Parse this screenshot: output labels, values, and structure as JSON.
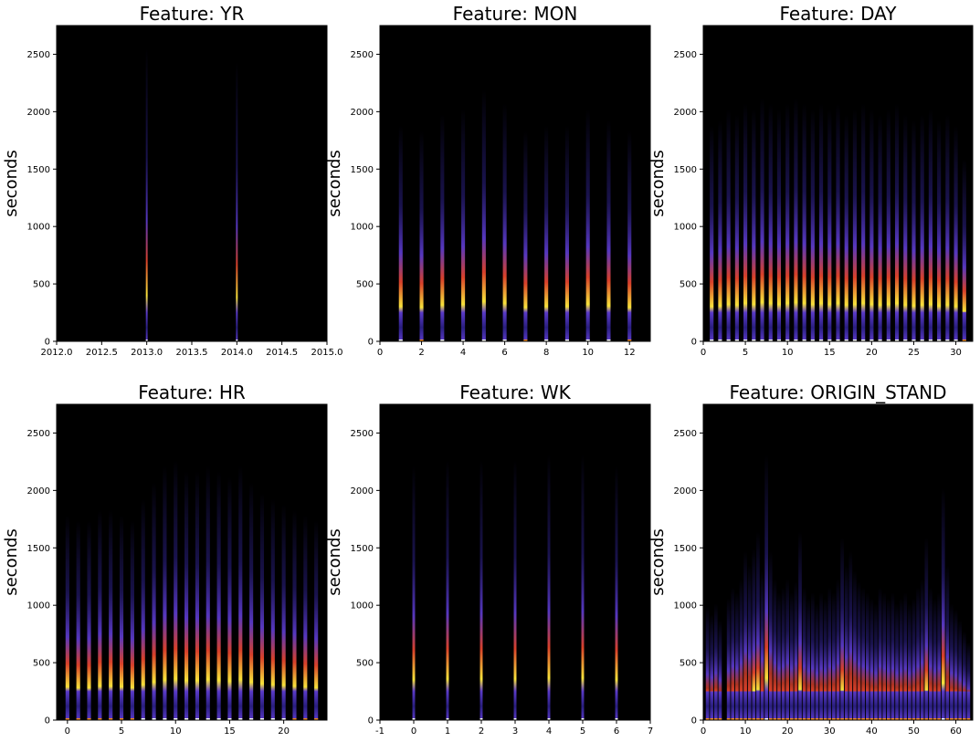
{
  "chart_data": [
    {
      "type": "heatmap",
      "title": "Feature: YR",
      "xlabel": "",
      "ylabel": "seconds",
      "xlim": [
        2012.0,
        2015.0
      ],
      "ylim": [
        0,
        2750
      ],
      "xticks": [
        "2012.0",
        "2012.5",
        "2013.0",
        "2013.5",
        "2014.0",
        "2014.5",
        "2015.0"
      ],
      "xtick_values": [
        2012.0,
        2012.5,
        2013.0,
        2013.5,
        2014.0,
        2014.5,
        2015.0
      ],
      "yticks": [
        "0",
        "500",
        "1000",
        "1500",
        "2000",
        "2500"
      ],
      "ytick_values": [
        0,
        500,
        1000,
        1500,
        2000,
        2500
      ],
      "column_width": 0.02,
      "columns": [
        {
          "x": 2013.0,
          "intensity": 1.0
        },
        {
          "x": 2014.0,
          "intensity": 0.95
        }
      ],
      "colormap": [
        "#000000",
        "#2a1f80",
        "#5a3ac8",
        "#d8402a",
        "#f08a1e",
        "#f7e23a",
        "#ffffff"
      ]
    },
    {
      "type": "heatmap",
      "title": "Feature: MON",
      "xlabel": "",
      "ylabel": "seconds",
      "xlim": [
        0,
        13
      ],
      "ylim": [
        0,
        2750
      ],
      "xticks": [
        "0",
        "2",
        "4",
        "6",
        "8",
        "10",
        "12"
      ],
      "xtick_values": [
        0,
        2,
        4,
        6,
        8,
        10,
        12
      ],
      "yticks": [
        "0",
        "500",
        "1000",
        "1500",
        "2000",
        "2500"
      ],
      "ytick_values": [
        0,
        500,
        1000,
        1500,
        2000,
        2500
      ],
      "column_width": 0.18,
      "columns": [
        {
          "x": 1,
          "intensity": 0.72
        },
        {
          "x": 2,
          "intensity": 0.7
        },
        {
          "x": 3,
          "intensity": 0.76
        },
        {
          "x": 4,
          "intensity": 0.78
        },
        {
          "x": 5,
          "intensity": 0.85
        },
        {
          "x": 6,
          "intensity": 0.8
        },
        {
          "x": 7,
          "intensity": 0.7
        },
        {
          "x": 8,
          "intensity": 0.72
        },
        {
          "x": 9,
          "intensity": 0.72
        },
        {
          "x": 10,
          "intensity": 0.78
        },
        {
          "x": 11,
          "intensity": 0.74
        },
        {
          "x": 12,
          "intensity": 0.7
        }
      ],
      "colormap": [
        "#000000",
        "#2a1f80",
        "#5a3ac8",
        "#d8402a",
        "#f08a1e",
        "#f7e23a",
        "#ffffff"
      ]
    },
    {
      "type": "heatmap",
      "title": "Feature: DAY",
      "xlabel": "",
      "ylabel": "seconds",
      "xlim": [
        0,
        32
      ],
      "ylim": [
        0,
        2750
      ],
      "xticks": [
        "0",
        "5",
        "10",
        "15",
        "20",
        "25",
        "30"
      ],
      "xtick_values": [
        0,
        5,
        10,
        15,
        20,
        25,
        30
      ],
      "yticks": [
        "0",
        "500",
        "1000",
        "1500",
        "2000",
        "2500"
      ],
      "ytick_values": [
        0,
        500,
        1000,
        1500,
        2000,
        2500
      ],
      "column_width": 0.45,
      "columns": [
        {
          "x": 1,
          "intensity": 0.72
        },
        {
          "x": 2,
          "intensity": 0.74
        },
        {
          "x": 3,
          "intensity": 0.78
        },
        {
          "x": 4,
          "intensity": 0.76
        },
        {
          "x": 5,
          "intensity": 0.8
        },
        {
          "x": 6,
          "intensity": 0.78
        },
        {
          "x": 7,
          "intensity": 0.82
        },
        {
          "x": 8,
          "intensity": 0.8
        },
        {
          "x": 9,
          "intensity": 0.78
        },
        {
          "x": 10,
          "intensity": 0.8
        },
        {
          "x": 11,
          "intensity": 0.82
        },
        {
          "x": 12,
          "intensity": 0.8
        },
        {
          "x": 13,
          "intensity": 0.78
        },
        {
          "x": 14,
          "intensity": 0.8
        },
        {
          "x": 15,
          "intensity": 0.78
        },
        {
          "x": 16,
          "intensity": 0.8
        },
        {
          "x": 17,
          "intensity": 0.76
        },
        {
          "x": 18,
          "intensity": 0.78
        },
        {
          "x": 19,
          "intensity": 0.8
        },
        {
          "x": 20,
          "intensity": 0.78
        },
        {
          "x": 21,
          "intensity": 0.76
        },
        {
          "x": 22,
          "intensity": 0.78
        },
        {
          "x": 23,
          "intensity": 0.8
        },
        {
          "x": 24,
          "intensity": 0.76
        },
        {
          "x": 25,
          "intensity": 0.74
        },
        {
          "x": 26,
          "intensity": 0.76
        },
        {
          "x": 27,
          "intensity": 0.78
        },
        {
          "x": 28,
          "intensity": 0.74
        },
        {
          "x": 29,
          "intensity": 0.76
        },
        {
          "x": 30,
          "intensity": 0.72
        },
        {
          "x": 31,
          "intensity": 0.6
        }
      ],
      "colormap": [
        "#000000",
        "#2a1f80",
        "#5a3ac8",
        "#d8402a",
        "#f08a1e",
        "#f7e23a",
        "#ffffff"
      ]
    },
    {
      "type": "heatmap",
      "title": "Feature: HR",
      "xlabel": "",
      "ylabel": "seconds",
      "xlim": [
        -1,
        24
      ],
      "ylim": [
        0,
        2750
      ],
      "xticks": [
        "0",
        "5",
        "10",
        "15",
        "20"
      ],
      "xtick_values": [
        0,
        5,
        10,
        15,
        20
      ],
      "yticks": [
        "0",
        "500",
        "1000",
        "1500",
        "2000",
        "2500"
      ],
      "ytick_values": [
        0,
        500,
        1000,
        1500,
        2000,
        2500
      ],
      "column_width": 0.35,
      "columns": [
        {
          "x": 0,
          "intensity": 0.68
        },
        {
          "x": 1,
          "intensity": 0.66
        },
        {
          "x": 2,
          "intensity": 0.66
        },
        {
          "x": 3,
          "intensity": 0.7
        },
        {
          "x": 4,
          "intensity": 0.7
        },
        {
          "x": 5,
          "intensity": 0.68
        },
        {
          "x": 6,
          "intensity": 0.66
        },
        {
          "x": 7,
          "intensity": 0.74
        },
        {
          "x": 8,
          "intensity": 0.8
        },
        {
          "x": 9,
          "intensity": 0.86
        },
        {
          "x": 10,
          "intensity": 0.88
        },
        {
          "x": 11,
          "intensity": 0.84
        },
        {
          "x": 12,
          "intensity": 0.84
        },
        {
          "x": 13,
          "intensity": 0.86
        },
        {
          "x": 14,
          "intensity": 0.84
        },
        {
          "x": 15,
          "intensity": 0.82
        },
        {
          "x": 16,
          "intensity": 0.86
        },
        {
          "x": 17,
          "intensity": 0.8
        },
        {
          "x": 18,
          "intensity": 0.76
        },
        {
          "x": 19,
          "intensity": 0.74
        },
        {
          "x": 20,
          "intensity": 0.72
        },
        {
          "x": 21,
          "intensity": 0.7
        },
        {
          "x": 22,
          "intensity": 0.68
        },
        {
          "x": 23,
          "intensity": 0.66
        }
      ],
      "colormap": [
        "#000000",
        "#2a1f80",
        "#5a3ac8",
        "#d8402a",
        "#f08a1e",
        "#f7e23a",
        "#ffffff"
      ]
    },
    {
      "type": "heatmap",
      "title": "Feature: WK",
      "xlabel": "",
      "ylabel": "seconds",
      "xlim": [
        -1,
        7
      ],
      "ylim": [
        0,
        2750
      ],
      "xticks": [
        "-1",
        "0",
        "1",
        "2",
        "3",
        "4",
        "5",
        "6",
        "7"
      ],
      "xtick_values": [
        -1,
        0,
        1,
        2,
        3,
        4,
        5,
        6,
        7
      ],
      "yticks": [
        "0",
        "500",
        "1000",
        "1500",
        "2000",
        "2500"
      ],
      "ytick_values": [
        0,
        500,
        1000,
        1500,
        2000,
        2500
      ],
      "column_width": 0.08,
      "columns": [
        {
          "x": 0,
          "intensity": 0.86
        },
        {
          "x": 1,
          "intensity": 0.88
        },
        {
          "x": 2,
          "intensity": 0.88
        },
        {
          "x": 3,
          "intensity": 0.88
        },
        {
          "x": 4,
          "intensity": 0.9
        },
        {
          "x": 5,
          "intensity": 0.9
        },
        {
          "x": 6,
          "intensity": 0.86
        }
      ],
      "colormap": [
        "#000000",
        "#2a1f80",
        "#5a3ac8",
        "#d8402a",
        "#f08a1e",
        "#f7e23a",
        "#ffffff"
      ]
    },
    {
      "type": "heatmap",
      "title": "Feature: ORIGIN_STAND",
      "xlabel": "",
      "ylabel": "seconds",
      "xlim": [
        0,
        64
      ],
      "ylim": [
        0,
        2750
      ],
      "xticks": [
        "0",
        "10",
        "20",
        "30",
        "40",
        "50",
        "60"
      ],
      "xtick_values": [
        0,
        10,
        20,
        30,
        40,
        50,
        60
      ],
      "yticks": [
        "0",
        "500",
        "1000",
        "1500",
        "2000",
        "2500"
      ],
      "ytick_values": [
        0,
        500,
        1000,
        1500,
        2000,
        2500
      ],
      "column_width": 0.8,
      "columns": [
        {
          "x": 1,
          "intensity": 0.35
        },
        {
          "x": 2,
          "intensity": 0.32
        },
        {
          "x": 3,
          "intensity": 0.36
        },
        {
          "x": 4,
          "intensity": 0.3
        },
        {
          "x": 6,
          "intensity": 0.38
        },
        {
          "x": 7,
          "intensity": 0.42
        },
        {
          "x": 8,
          "intensity": 0.4
        },
        {
          "x": 9,
          "intensity": 0.45
        },
        {
          "x": 10,
          "intensity": 0.55
        },
        {
          "x": 11,
          "intensity": 0.5
        },
        {
          "x": 12,
          "intensity": 0.56
        },
        {
          "x": 13,
          "intensity": 0.62
        },
        {
          "x": 14,
          "intensity": 0.48
        },
        {
          "x": 15,
          "intensity": 0.9
        },
        {
          "x": 16,
          "intensity": 0.55
        },
        {
          "x": 17,
          "intensity": 0.45
        },
        {
          "x": 18,
          "intensity": 0.4
        },
        {
          "x": 19,
          "intensity": 0.42
        },
        {
          "x": 20,
          "intensity": 0.45
        },
        {
          "x": 21,
          "intensity": 0.4
        },
        {
          "x": 22,
          "intensity": 0.44
        },
        {
          "x": 23,
          "intensity": 0.62
        },
        {
          "x": 24,
          "intensity": 0.42
        },
        {
          "x": 25,
          "intensity": 0.38
        },
        {
          "x": 26,
          "intensity": 0.4
        },
        {
          "x": 27,
          "intensity": 0.36
        },
        {
          "x": 28,
          "intensity": 0.4
        },
        {
          "x": 29,
          "intensity": 0.38
        },
        {
          "x": 30,
          "intensity": 0.42
        },
        {
          "x": 31,
          "intensity": 0.4
        },
        {
          "x": 32,
          "intensity": 0.45
        },
        {
          "x": 33,
          "intensity": 0.6
        },
        {
          "x": 34,
          "intensity": 0.5
        },
        {
          "x": 35,
          "intensity": 0.55
        },
        {
          "x": 36,
          "intensity": 0.48
        },
        {
          "x": 37,
          "intensity": 0.44
        },
        {
          "x": 38,
          "intensity": 0.42
        },
        {
          "x": 39,
          "intensity": 0.4
        },
        {
          "x": 40,
          "intensity": 0.38
        },
        {
          "x": 41,
          "intensity": 0.36
        },
        {
          "x": 42,
          "intensity": 0.42
        },
        {
          "x": 43,
          "intensity": 0.4
        },
        {
          "x": 44,
          "intensity": 0.38
        },
        {
          "x": 45,
          "intensity": 0.4
        },
        {
          "x": 46,
          "intensity": 0.36
        },
        {
          "x": 47,
          "intensity": 0.38
        },
        {
          "x": 48,
          "intensity": 0.4
        },
        {
          "x": 49,
          "intensity": 0.36
        },
        {
          "x": 50,
          "intensity": 0.38
        },
        {
          "x": 51,
          "intensity": 0.42
        },
        {
          "x": 52,
          "intensity": 0.45
        },
        {
          "x": 53,
          "intensity": 0.6
        },
        {
          "x": 54,
          "intensity": 0.42
        },
        {
          "x": 55,
          "intensity": 0.38
        },
        {
          "x": 56,
          "intensity": 0.4
        },
        {
          "x": 57,
          "intensity": 0.78
        },
        {
          "x": 58,
          "intensity": 0.5
        },
        {
          "x": 59,
          "intensity": 0.36
        },
        {
          "x": 60,
          "intensity": 0.34
        },
        {
          "x": 61,
          "intensity": 0.3
        },
        {
          "x": 62,
          "intensity": 0.26
        },
        {
          "x": 63,
          "intensity": 0.22
        }
      ],
      "colormap": [
        "#000000",
        "#2a1f80",
        "#5a3ac8",
        "#d8402a",
        "#f08a1e",
        "#f7e23a",
        "#ffffff"
      ]
    }
  ]
}
